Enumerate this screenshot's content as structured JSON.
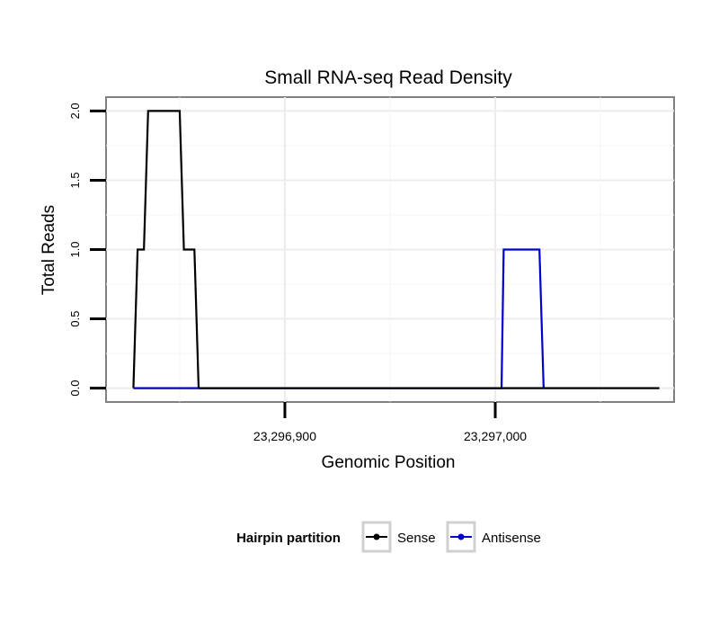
{
  "chart_data": {
    "type": "line",
    "title": "Small RNA-seq Read Density",
    "xlabel": "Genomic Position",
    "ylabel": "Total Reads",
    "xlim": [
      23296815,
      23297085
    ],
    "ylim": [
      -0.1,
      2.1
    ],
    "x_ticks": [
      23296900,
      23297000
    ],
    "x_tick_labels": [
      "23,296,900",
      "23,297,000"
    ],
    "y_ticks": [
      0.0,
      0.5,
      1.0,
      1.5,
      2.0
    ],
    "y_tick_labels": [
      "0.0",
      "0.5",
      "1.0",
      "1.5",
      "2.0"
    ],
    "grid": true,
    "legend": {
      "title": "Hairpin partition",
      "placement": "bottom"
    },
    "series": [
      {
        "name": "Sense",
        "color": "#000000",
        "x": [
          23296828,
          23296830,
          23296833,
          23296835,
          23296850,
          23296852,
          23296857,
          23296859
        ],
        "y": [
          0,
          1,
          1,
          2,
          2,
          1,
          1,
          0
        ]
      },
      {
        "name": "Antisense",
        "color": "#0000cc",
        "x": [
          23296828,
          23296859,
          23297003,
          23297004,
          23297021,
          23297023
        ],
        "y": [
          0,
          0,
          0,
          1,
          1,
          0
        ]
      },
      {
        "name": "Sense",
        "color": "#000000",
        "x": [
          23296859,
          23297003,
          23297023,
          23297078
        ],
        "y": [
          0,
          0,
          0,
          0
        ]
      }
    ],
    "legend_entries": [
      {
        "label": "Sense",
        "color": "#000000"
      },
      {
        "label": "Antisense",
        "color": "#0000cc"
      }
    ]
  }
}
